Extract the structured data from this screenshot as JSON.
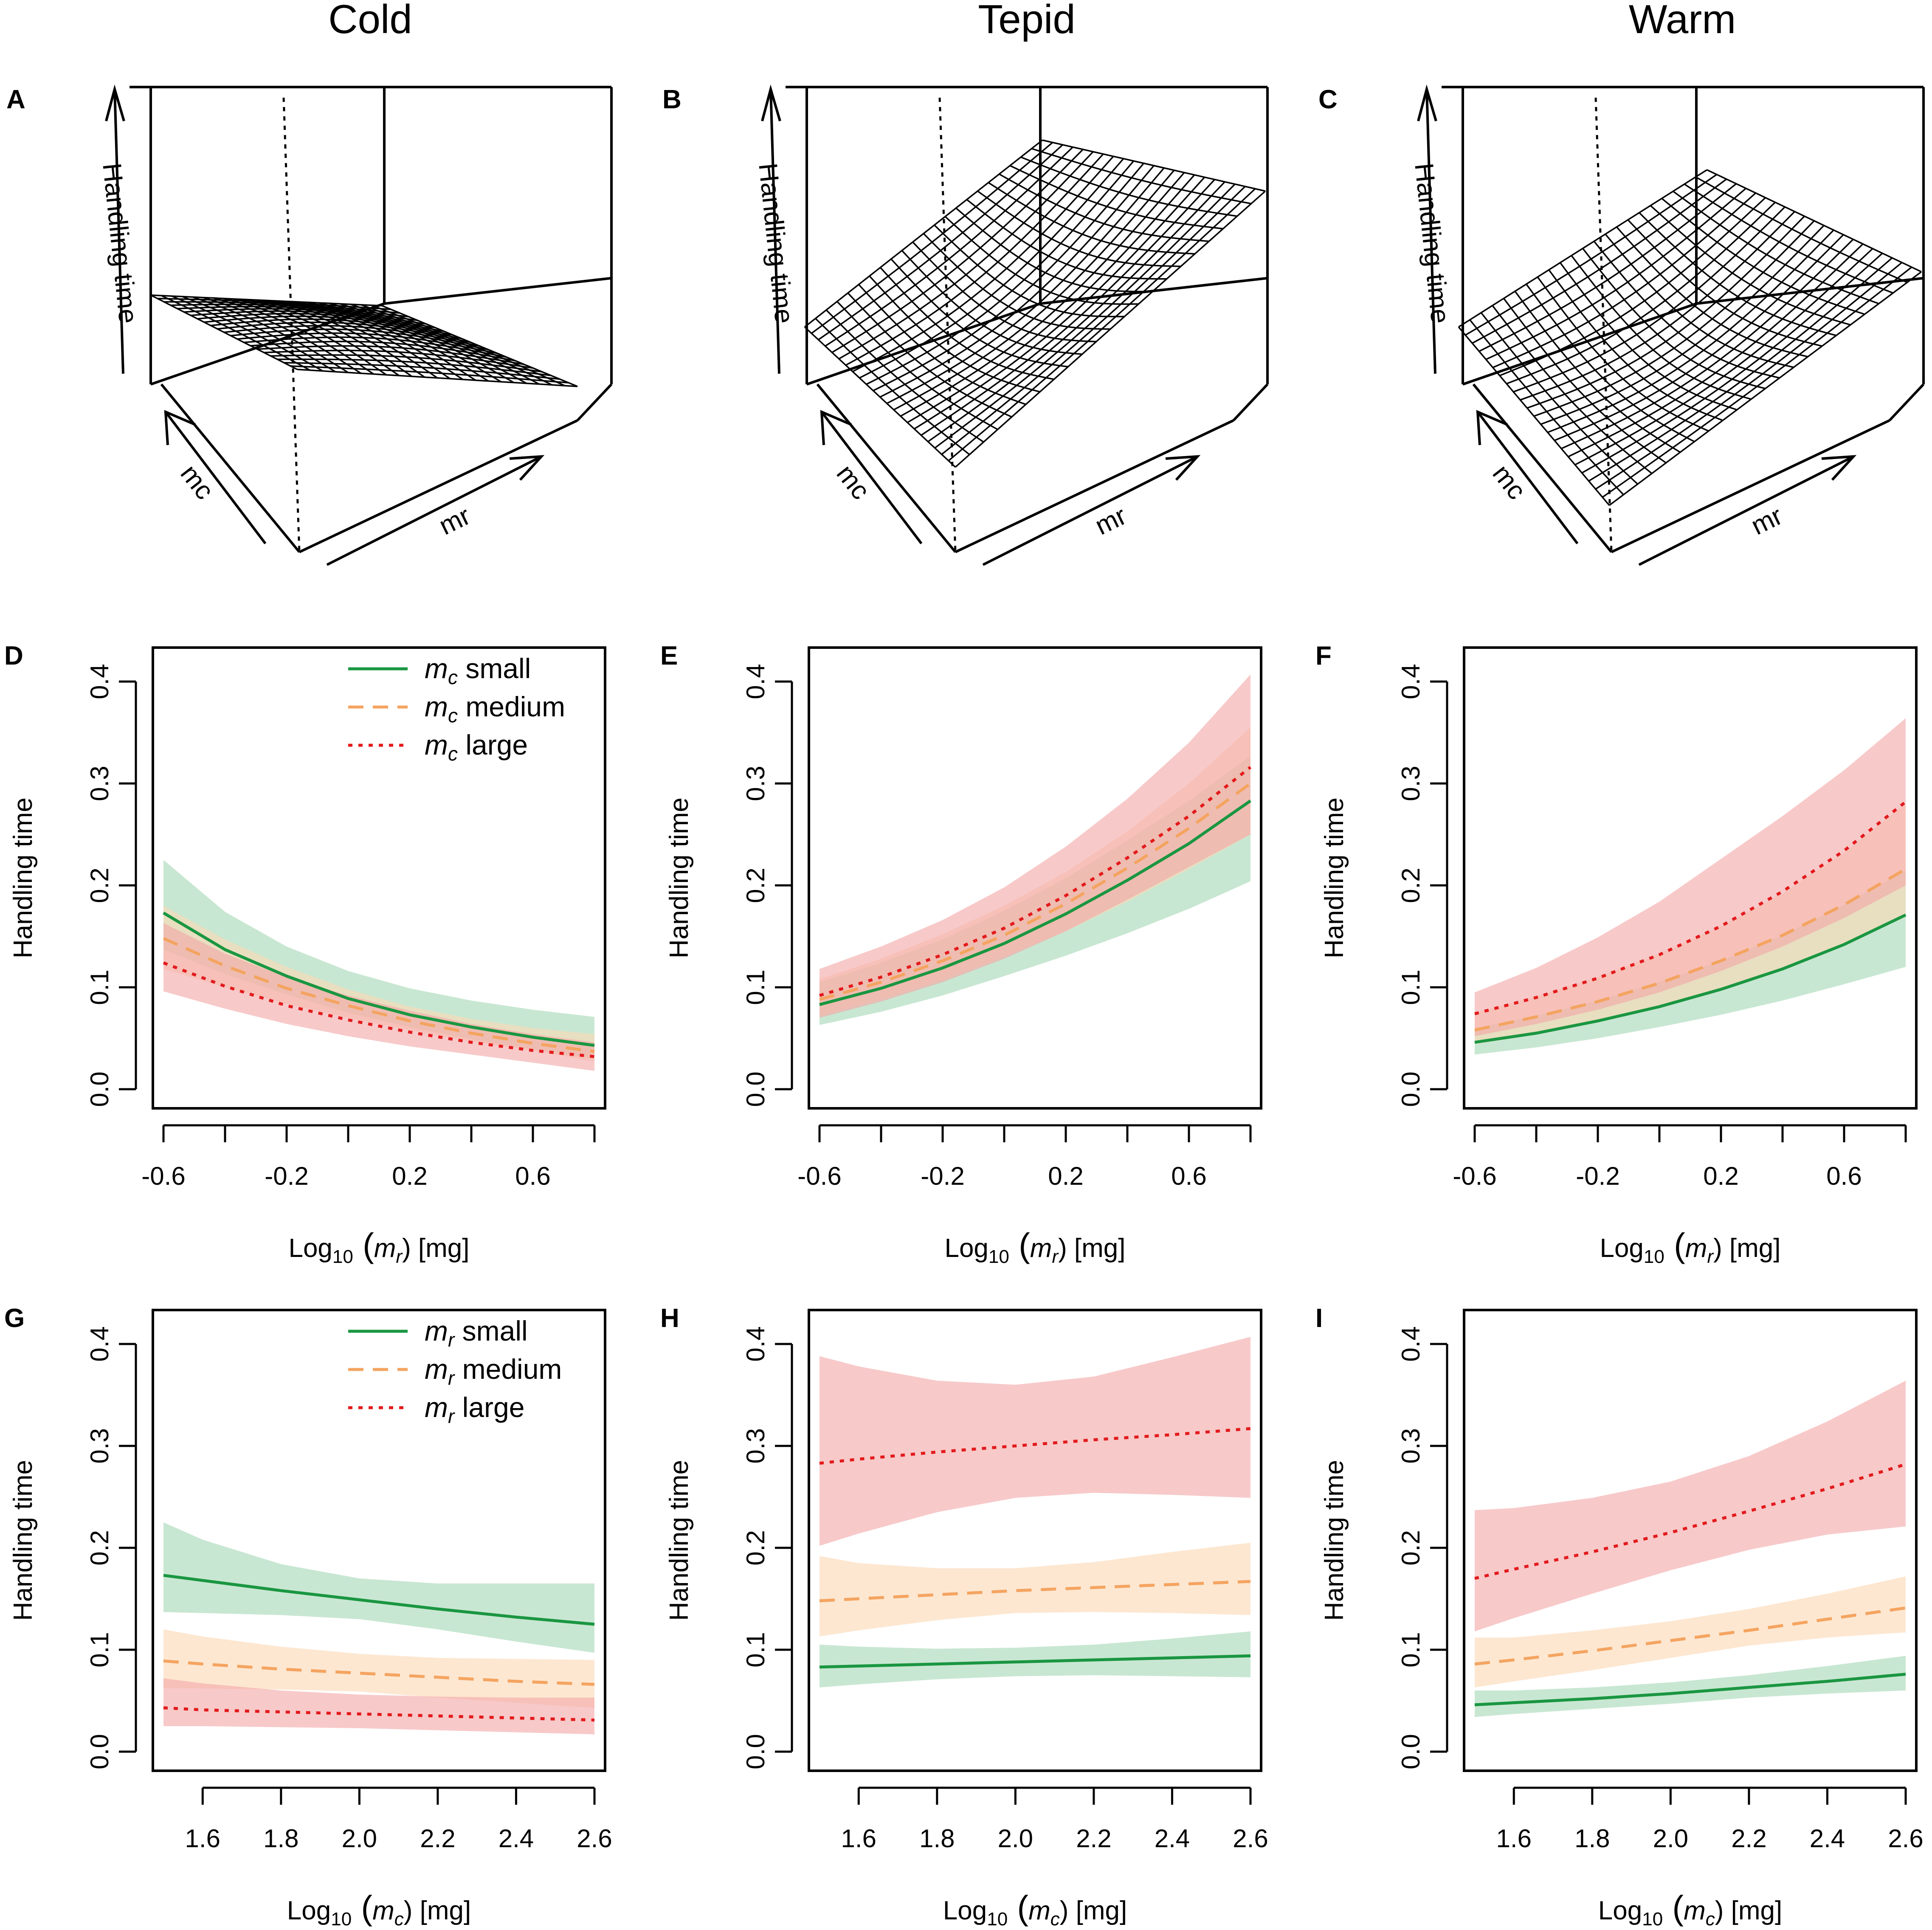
{
  "columns": [
    "Cold",
    "Tepid",
    "Warm"
  ],
  "colors": {
    "small": "#1a9641",
    "medium": "#f4a460",
    "large": "#e31a1c",
    "small_band": "#a6d9b7",
    "medium_band": "#fcd9b5",
    "large_band": "#f3a8a8"
  },
  "surface_panels": [
    {
      "label": "A",
      "condition": "Cold",
      "z_label": "Handling time",
      "x_label": "mc",
      "y_label": "mr",
      "shape": "decreasing"
    },
    {
      "label": "B",
      "condition": "Tepid",
      "z_label": "Handling time",
      "x_label": "mc",
      "y_label": "mr",
      "shape": "increasing"
    },
    {
      "label": "C",
      "condition": "Warm",
      "z_label": "Handling time",
      "x_label": "mc",
      "y_label": "mr",
      "shape": "increasing-steep"
    }
  ],
  "legend_mc": {
    "title_prefix": "m",
    "sub": "c",
    "entries": [
      "small",
      "medium",
      "large"
    ]
  },
  "legend_mr": {
    "title_prefix": "m",
    "sub": "r",
    "entries": [
      "small",
      "medium",
      "large"
    ]
  },
  "chart_data": [
    {
      "panel": "D",
      "type": "line",
      "condition": "Cold",
      "ylabel": "Handling time",
      "xlabel_parts": [
        "Log",
        "10",
        " (",
        "m",
        "r",
        ") [mg]"
      ],
      "xlim": [
        -0.6,
        0.8
      ],
      "ylim": [
        0.0,
        0.4
      ],
      "xticks": [
        -0.6,
        -0.4,
        -0.2,
        0.0,
        0.2,
        0.4,
        0.6,
        0.8
      ],
      "xtick_labels": [
        "-0.6",
        "",
        "-0.2",
        "",
        "0.2",
        "",
        "0.6",
        ""
      ],
      "yticks": [
        0.0,
        0.1,
        0.2,
        0.3,
        0.4
      ],
      "ytick_labels": [
        "0.0",
        "0.1",
        "0.2",
        "0.3",
        "0.4"
      ],
      "legend": {
        "key": "legend_mc",
        "position": "top-right"
      },
      "x": [
        -0.6,
        -0.4,
        -0.2,
        0.0,
        0.2,
        0.4,
        0.6,
        0.8
      ],
      "series": [
        {
          "name": "mc small",
          "style": "small",
          "values": [
            0.173,
            0.137,
            0.111,
            0.089,
            0.073,
            0.061,
            0.051,
            0.043
          ],
          "lower": [
            0.137,
            0.113,
            0.093,
            0.075,
            0.061,
            0.049,
            0.039,
            0.03
          ],
          "upper": [
            0.225,
            0.174,
            0.14,
            0.116,
            0.099,
            0.087,
            0.078,
            0.071
          ]
        },
        {
          "name": "mc medium",
          "style": "medium",
          "values": [
            0.148,
            0.121,
            0.099,
            0.082,
            0.067,
            0.055,
            0.045,
            0.037
          ],
          "lower": [
            0.118,
            0.1,
            0.084,
            0.07,
            0.058,
            0.047,
            0.038,
            0.027
          ],
          "upper": [
            0.18,
            0.147,
            0.12,
            0.098,
            0.081,
            0.069,
            0.06,
            0.054
          ]
        },
        {
          "name": "mc large",
          "style": "large",
          "values": [
            0.124,
            0.101,
            0.082,
            0.068,
            0.056,
            0.046,
            0.038,
            0.032
          ],
          "lower": [
            0.096,
            0.079,
            0.064,
            0.052,
            0.042,
            0.034,
            0.026,
            0.018
          ],
          "upper": [
            0.163,
            0.133,
            0.11,
            0.092,
            0.077,
            0.064,
            0.054,
            0.046
          ]
        }
      ]
    },
    {
      "panel": "E",
      "type": "line",
      "condition": "Tepid",
      "ylabel": "Handling time",
      "xlabel_parts": [
        "Log",
        "10",
        " (",
        "m",
        "r",
        ") [mg]"
      ],
      "xlim": [
        -0.6,
        0.8
      ],
      "ylim": [
        0.0,
        0.4
      ],
      "xticks": [
        -0.6,
        -0.4,
        -0.2,
        0.0,
        0.2,
        0.4,
        0.6,
        0.8
      ],
      "xtick_labels": [
        "-0.6",
        "",
        "-0.2",
        "",
        "0.2",
        "",
        "0.6",
        ""
      ],
      "yticks": [
        0.0,
        0.1,
        0.2,
        0.3,
        0.4
      ],
      "ytick_labels": [
        "0.0",
        "0.1",
        "0.2",
        "0.3",
        "0.4"
      ],
      "legend": null,
      "x": [
        -0.6,
        -0.4,
        -0.2,
        0.0,
        0.2,
        0.4,
        0.6,
        0.8
      ],
      "series": [
        {
          "name": "mc small",
          "style": "small",
          "values": [
            0.083,
            0.099,
            0.119,
            0.143,
            0.172,
            0.205,
            0.241,
            0.283
          ],
          "lower": [
            0.063,
            0.076,
            0.092,
            0.111,
            0.131,
            0.153,
            0.177,
            0.204
          ],
          "upper": [
            0.105,
            0.124,
            0.147,
            0.175,
            0.207,
            0.244,
            0.283,
            0.327
          ]
        },
        {
          "name": "mc medium",
          "style": "medium",
          "values": [
            0.088,
            0.105,
            0.126,
            0.151,
            0.182,
            0.217,
            0.256,
            0.3
          ],
          "lower": [
            0.072,
            0.088,
            0.107,
            0.13,
            0.155,
            0.184,
            0.216,
            0.25
          ],
          "upper": [
            0.108,
            0.128,
            0.152,
            0.18,
            0.213,
            0.253,
            0.3,
            0.355
          ]
        },
        {
          "name": "mc large",
          "style": "large",
          "values": [
            0.092,
            0.11,
            0.132,
            0.158,
            0.19,
            0.227,
            0.268,
            0.316
          ],
          "lower": [
            0.07,
            0.086,
            0.105,
            0.128,
            0.155,
            0.186,
            0.218,
            0.25
          ],
          "upper": [
            0.118,
            0.14,
            0.166,
            0.198,
            0.238,
            0.285,
            0.34,
            0.407
          ]
        }
      ]
    },
    {
      "panel": "F",
      "type": "line",
      "condition": "Warm",
      "ylabel": "Handling time",
      "xlabel_parts": [
        "Log",
        "10",
        " (",
        "m",
        "r",
        ") [mg]"
      ],
      "xlim": [
        -0.6,
        0.8
      ],
      "ylim": [
        0.0,
        0.4
      ],
      "xticks": [
        -0.6,
        -0.4,
        -0.2,
        0.0,
        0.2,
        0.4,
        0.6,
        0.8
      ],
      "xtick_labels": [
        "-0.6",
        "",
        "-0.2",
        "",
        "0.2",
        "",
        "0.6",
        ""
      ],
      "yticks": [
        0.0,
        0.1,
        0.2,
        0.3,
        0.4
      ],
      "ytick_labels": [
        "0.0",
        "0.1",
        "0.2",
        "0.3",
        "0.4"
      ],
      "legend": null,
      "x": [
        -0.6,
        -0.4,
        -0.2,
        0.0,
        0.2,
        0.4,
        0.6,
        0.8
      ],
      "series": [
        {
          "name": "mc small",
          "style": "small",
          "values": [
            0.046,
            0.055,
            0.067,
            0.081,
            0.098,
            0.118,
            0.142,
            0.171
          ],
          "lower": [
            0.034,
            0.041,
            0.05,
            0.061,
            0.073,
            0.087,
            0.103,
            0.12
          ],
          "upper": [
            0.06,
            0.072,
            0.087,
            0.105,
            0.126,
            0.151,
            0.181,
            0.215
          ]
        },
        {
          "name": "mc medium",
          "style": "medium",
          "values": [
            0.058,
            0.071,
            0.086,
            0.104,
            0.126,
            0.151,
            0.181,
            0.216
          ],
          "lower": [
            0.044,
            0.054,
            0.066,
            0.081,
            0.098,
            0.118,
            0.142,
            0.169
          ],
          "upper": [
            0.075,
            0.091,
            0.11,
            0.133,
            0.16,
            0.192,
            0.232,
            0.28
          ]
        },
        {
          "name": "mc large",
          "style": "large",
          "values": [
            0.074,
            0.09,
            0.109,
            0.132,
            0.16,
            0.194,
            0.234,
            0.282
          ],
          "lower": [
            0.052,
            0.064,
            0.078,
            0.095,
            0.116,
            0.14,
            0.168,
            0.2
          ],
          "upper": [
            0.095,
            0.119,
            0.149,
            0.184,
            0.226,
            0.268,
            0.313,
            0.364
          ]
        }
      ]
    },
    {
      "panel": "G",
      "type": "line",
      "condition": "Cold",
      "ylabel": "Handling time",
      "xlabel_parts": [
        "Log",
        "10",
        " (",
        "m",
        "c",
        ") [mg]"
      ],
      "xlim": [
        1.5,
        2.6
      ],
      "ylim": [
        0.0,
        0.4
      ],
      "xticks": [
        1.6,
        1.8,
        2.0,
        2.2,
        2.4,
        2.6
      ],
      "xtick_labels": [
        "1.6",
        "1.8",
        "2.0",
        "2.2",
        "2.4",
        "2.6"
      ],
      "yticks": [
        0.0,
        0.1,
        0.2,
        0.3,
        0.4
      ],
      "ytick_labels": [
        "0.0",
        "0.1",
        "0.2",
        "0.3",
        "0.4"
      ],
      "legend": {
        "key": "legend_mr",
        "position": "top-right"
      },
      "x": [
        1.5,
        1.6,
        1.8,
        2.0,
        2.2,
        2.4,
        2.6
      ],
      "series": [
        {
          "name": "mr small",
          "style": "small",
          "values": [
            0.173,
            0.168,
            0.158,
            0.149,
            0.14,
            0.132,
            0.125
          ],
          "lower": [
            0.137,
            0.136,
            0.134,
            0.13,
            0.12,
            0.108,
            0.097
          ],
          "upper": [
            0.225,
            0.208,
            0.184,
            0.17,
            0.165,
            0.165,
            0.165
          ]
        },
        {
          "name": "mr medium",
          "style": "medium",
          "values": [
            0.089,
            0.086,
            0.081,
            0.077,
            0.073,
            0.069,
            0.066
          ],
          "lower": [
            0.062,
            0.062,
            0.061,
            0.059,
            0.053,
            0.048,
            0.043
          ],
          "upper": [
            0.12,
            0.113,
            0.103,
            0.096,
            0.092,
            0.091,
            0.09
          ]
        },
        {
          "name": "mr large",
          "style": "large",
          "values": [
            0.043,
            0.041,
            0.039,
            0.037,
            0.035,
            0.033,
            0.031
          ],
          "lower": [
            0.025,
            0.025,
            0.024,
            0.023,
            0.021,
            0.019,
            0.017
          ],
          "upper": [
            0.072,
            0.067,
            0.06,
            0.056,
            0.054,
            0.053,
            0.053
          ]
        }
      ]
    },
    {
      "panel": "H",
      "type": "line",
      "condition": "Tepid",
      "ylabel": "Handling time",
      "xlabel_parts": [
        "Log",
        "10",
        " (",
        "m",
        "c",
        ") [mg]"
      ],
      "xlim": [
        1.5,
        2.6
      ],
      "ylim": [
        0.0,
        0.4
      ],
      "xticks": [
        1.6,
        1.8,
        2.0,
        2.2,
        2.4,
        2.6
      ],
      "xtick_labels": [
        "1.6",
        "1.8",
        "2.0",
        "2.2",
        "2.4",
        "2.6"
      ],
      "yticks": [
        0.0,
        0.1,
        0.2,
        0.3,
        0.4
      ],
      "ytick_labels": [
        "0.0",
        "0.1",
        "0.2",
        "0.3",
        "0.4"
      ],
      "legend": null,
      "x": [
        1.5,
        1.6,
        1.8,
        2.0,
        2.2,
        2.4,
        2.6
      ],
      "series": [
        {
          "name": "mr small",
          "style": "small",
          "values": [
            0.083,
            0.084,
            0.086,
            0.088,
            0.09,
            0.092,
            0.094
          ],
          "lower": [
            0.063,
            0.066,
            0.071,
            0.074,
            0.075,
            0.074,
            0.073
          ],
          "upper": [
            0.105,
            0.103,
            0.101,
            0.102,
            0.105,
            0.111,
            0.118
          ]
        },
        {
          "name": "mr medium",
          "style": "medium",
          "values": [
            0.148,
            0.15,
            0.154,
            0.158,
            0.161,
            0.164,
            0.167
          ],
          "lower": [
            0.113,
            0.119,
            0.129,
            0.136,
            0.137,
            0.136,
            0.134
          ],
          "upper": [
            0.192,
            0.185,
            0.18,
            0.18,
            0.186,
            0.196,
            0.205
          ]
        },
        {
          "name": "mr large",
          "style": "large",
          "values": [
            0.283,
            0.287,
            0.294,
            0.3,
            0.306,
            0.311,
            0.317
          ],
          "lower": [
            0.202,
            0.214,
            0.235,
            0.249,
            0.254,
            0.252,
            0.249
          ],
          "upper": [
            0.388,
            0.378,
            0.364,
            0.36,
            0.368,
            0.387,
            0.407
          ]
        }
      ]
    },
    {
      "panel": "I",
      "type": "line",
      "condition": "Warm",
      "ylabel": "Handling time",
      "xlabel_parts": [
        "Log",
        "10",
        " (",
        "m",
        "c",
        ") [mg]"
      ],
      "xlim": [
        1.5,
        2.6
      ],
      "ylim": [
        0.0,
        0.4
      ],
      "xticks": [
        1.6,
        1.8,
        2.0,
        2.2,
        2.4,
        2.6
      ],
      "xtick_labels": [
        "1.6",
        "1.8",
        "2.0",
        "2.2",
        "2.4",
        "2.6"
      ],
      "yticks": [
        0.0,
        0.1,
        0.2,
        0.3,
        0.4
      ],
      "ytick_labels": [
        "0.0",
        "0.1",
        "0.2",
        "0.3",
        "0.4"
      ],
      "legend": null,
      "x": [
        1.5,
        1.6,
        1.8,
        2.0,
        2.2,
        2.4,
        2.6
      ],
      "series": [
        {
          "name": "mr small",
          "style": "small",
          "values": [
            0.046,
            0.048,
            0.052,
            0.057,
            0.063,
            0.069,
            0.076
          ],
          "lower": [
            0.034,
            0.037,
            0.042,
            0.047,
            0.053,
            0.057,
            0.06
          ],
          "upper": [
            0.06,
            0.06,
            0.063,
            0.068,
            0.075,
            0.084,
            0.094
          ]
        },
        {
          "name": "mr medium",
          "style": "medium",
          "values": [
            0.086,
            0.09,
            0.099,
            0.109,
            0.119,
            0.13,
            0.141
          ],
          "lower": [
            0.063,
            0.069,
            0.08,
            0.092,
            0.104,
            0.112,
            0.117
          ],
          "upper": [
            0.112,
            0.112,
            0.119,
            0.128,
            0.14,
            0.155,
            0.172
          ]
        },
        {
          "name": "mr large",
          "style": "large",
          "values": [
            0.17,
            0.179,
            0.196,
            0.215,
            0.236,
            0.258,
            0.282
          ],
          "lower": [
            0.118,
            0.131,
            0.155,
            0.178,
            0.198,
            0.213,
            0.221
          ],
          "upper": [
            0.237,
            0.239,
            0.249,
            0.265,
            0.29,
            0.324,
            0.364
          ]
        }
      ]
    }
  ]
}
